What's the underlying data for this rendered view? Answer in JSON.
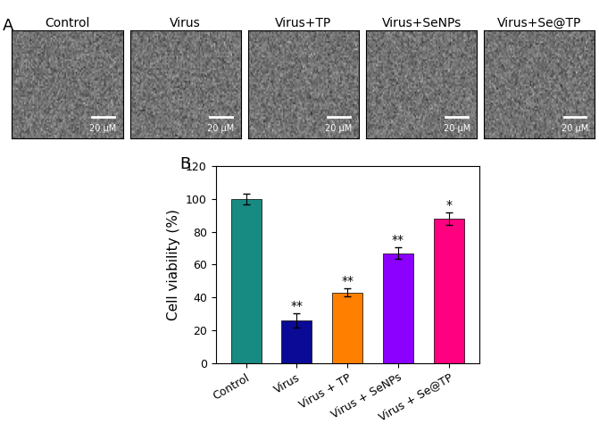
{
  "panel_labels": [
    "A",
    "B"
  ],
  "images": {
    "titles": [
      "Control",
      "Virus",
      "Virus+TP",
      "Virus+SeNPs",
      "Virus+Se@TP"
    ],
    "scale_bar": "20 μM"
  },
  "chart_data": {
    "type": "bar",
    "categories": [
      "Control",
      "Virus",
      "Virus + TP",
      "Virus + SeNPs",
      "Virus + Se@TP"
    ],
    "values": [
      100,
      26,
      43,
      67,
      88
    ],
    "errors": [
      3.5,
      4.5,
      2.5,
      3.5,
      4
    ],
    "colors": [
      "#178a82",
      "#0a0a96",
      "#ff8000",
      "#8b00ff",
      "#ff0080"
    ],
    "y_label": "Cell viability (%)",
    "annotations": [
      {
        "category": "Virus",
        "text": "**"
      },
      {
        "category": "Virus + TP",
        "text": "**"
      },
      {
        "category": "Virus + SeNPs",
        "text": "**"
      },
      {
        "category": "Virus + Se@TP",
        "text": "*"
      }
    ],
    "ylim": [
      0,
      120
    ],
    "yticks": [
      0,
      20,
      40,
      60,
      80,
      100,
      120
    ],
    "grid": false
  }
}
